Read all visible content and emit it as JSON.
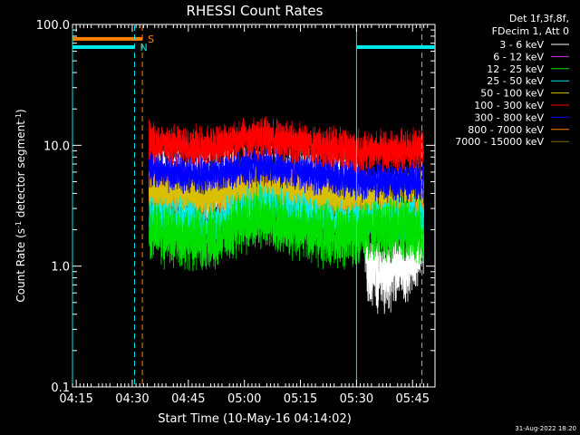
{
  "chart_data": {
    "type": "line",
    "title": "RHESSI Count Rates",
    "xlabel": "Start Time (10-May-16 04:14:02)",
    "ylabel_parts": [
      "Count Rate (s",
      "-1",
      " detector segment",
      "-1",
      ")"
    ],
    "x_unit": "minutes since 04:14:02 UT",
    "xlim": [
      0,
      97
    ],
    "ylim": [
      0.1,
      100
    ],
    "y_scale": "log",
    "x_ticks": [
      {
        "x": 1,
        "label": "04:15"
      },
      {
        "x": 16,
        "label": "04:30"
      },
      {
        "x": 31,
        "label": "04:45"
      },
      {
        "x": 46,
        "label": "05:00"
      },
      {
        "x": 61,
        "label": "05:15"
      },
      {
        "x": 76,
        "label": "05:30"
      },
      {
        "x": 91,
        "label": "05:45"
      }
    ],
    "y_ticks": [
      {
        "y": 0.1,
        "label": "0.1"
      },
      {
        "y": 1,
        "label": "1.0"
      },
      {
        "y": 10,
        "label": "10.0"
      },
      {
        "y": 100,
        "label": "100.0"
      }
    ],
    "legend_header": [
      "Det 1f,3f,8f,",
      "FDecim 1, Att 0"
    ],
    "legend_placement": "outside-right",
    "footer_date": "31-Aug-2022 18:20",
    "series": [
      {
        "name": "3 - 6 keV",
        "color": "#ffffff",
        "x": [
          20.5,
          30,
          40,
          50,
          60,
          70,
          76,
          79,
          82,
          85,
          88,
          92,
          94
        ],
        "y": [
          4.8,
          5.0,
          4.7,
          4.9,
          4.8,
          4.4,
          4.3,
          1.0,
          0.85,
          0.9,
          1.0,
          1.2,
          1.5
        ]
      },
      {
        "name": "6 - 12 keV",
        "color": "#d033d0",
        "x": [
          20.5,
          30,
          40,
          50,
          60,
          70,
          80,
          90,
          94
        ],
        "y": [
          4.5,
          4.8,
          4.5,
          4.8,
          4.6,
          4.3,
          4.3,
          4.6,
          4.8
        ]
      },
      {
        "name": "12 - 25 keV",
        "color": "#00e000",
        "x": [
          20.5,
          25,
          30,
          35,
          40,
          45,
          50,
          55,
          60,
          65,
          70,
          75,
          80,
          85,
          90,
          94
        ],
        "y": [
          2.0,
          1.8,
          1.7,
          1.65,
          1.8,
          2.2,
          2.5,
          2.3,
          2.0,
          1.9,
          1.7,
          1.8,
          2.0,
          2.0,
          2.0,
          1.9
        ]
      },
      {
        "name": "25 - 50 keV",
        "color": "#00e8e8",
        "x": [
          20.5,
          25,
          30,
          35,
          40,
          45,
          50,
          55,
          60,
          65,
          70,
          75,
          80,
          85,
          90,
          94
        ],
        "y": [
          2.6,
          2.5,
          2.4,
          2.2,
          2.4,
          2.9,
          3.2,
          3.0,
          2.8,
          2.6,
          2.4,
          2.3,
          2.4,
          2.4,
          2.5,
          2.4
        ]
      },
      {
        "name": "50 - 100 keV",
        "color": "#d8c000",
        "x": [
          20.5,
          25,
          30,
          35,
          40,
          45,
          50,
          55,
          60,
          65,
          70,
          75,
          80,
          85,
          90,
          94
        ],
        "y": [
          4.2,
          4.0,
          4.1,
          3.8,
          4.0,
          4.3,
          4.4,
          4.2,
          4.0,
          3.9,
          3.8,
          3.8,
          3.8,
          3.9,
          4.0,
          4.0
        ]
      },
      {
        "name": "100 - 300 keV",
        "color": "#ff0000",
        "x": [
          20.5,
          25,
          30,
          35,
          40,
          45,
          50,
          55,
          60,
          65,
          70,
          75,
          80,
          85,
          90,
          94
        ],
        "y": [
          11.0,
          10.3,
          9.8,
          9.6,
          10.3,
          11.2,
          11.6,
          11.0,
          10.5,
          9.8,
          9.5,
          9.0,
          9.0,
          9.0,
          9.0,
          9.3
        ]
      },
      {
        "name": "300 - 800 keV",
        "color": "#0000ff",
        "x": [
          20.5,
          25,
          30,
          35,
          40,
          45,
          50,
          55,
          60,
          65,
          70,
          75,
          80,
          85,
          90,
          94
        ],
        "y": [
          6.5,
          6.0,
          5.8,
          5.6,
          6.0,
          6.6,
          6.9,
          6.6,
          6.2,
          5.8,
          5.6,
          5.3,
          5.1,
          5.0,
          5.0,
          5.1
        ]
      },
      {
        "name": "800 - 7000 keV",
        "color": "#ff8000",
        "x": [
          20.5,
          25,
          30,
          35,
          40,
          45,
          50,
          55,
          60,
          65,
          70,
          75,
          80,
          85,
          90,
          94
        ],
        "y": [
          4.3,
          4.0,
          3.8,
          3.6,
          3.9,
          4.3,
          4.5,
          4.2,
          3.9,
          3.6,
          3.4,
          3.2,
          3.1,
          3.0,
          3.0,
          3.0
        ]
      },
      {
        "name": "7000 - 15000 keV",
        "color": "#8a6a00",
        "x": [],
        "y": []
      }
    ],
    "annotations": [
      {
        "type": "flag_bar",
        "label": "S",
        "color": "#ff8000",
        "x0": 0,
        "x1": 18.7,
        "y": 76
      },
      {
        "type": "flag_bar",
        "label": "N",
        "color": "#00e8e8",
        "x0": 0,
        "x1": 16.6,
        "y": 65
      },
      {
        "type": "flag_bar",
        "label": "",
        "color": "#00e8e8",
        "x0": 76,
        "x1": 97,
        "y": 65
      },
      {
        "type": "vline",
        "color": "#00e8e8",
        "x": 0,
        "style": "solid"
      },
      {
        "type": "vline",
        "color": "#00e8e8",
        "x": 16.6,
        "style": "dashed"
      },
      {
        "type": "vline",
        "color": "#ff8000",
        "x": 18.7,
        "style": "dashed"
      },
      {
        "type": "vline",
        "color": "#00e8e8",
        "x": 76,
        "style": "solid"
      },
      {
        "type": "vline",
        "color": "#00e8e8",
        "x": 93.5,
        "style": "dashed"
      }
    ]
  }
}
